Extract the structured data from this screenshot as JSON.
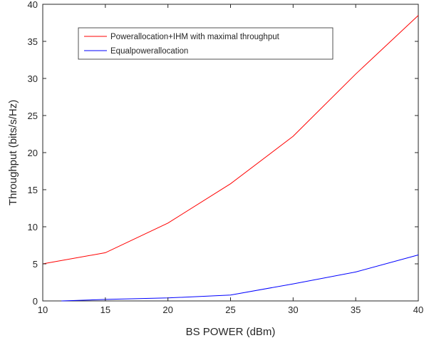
{
  "chart_data": {
    "type": "line",
    "title": "",
    "xlabel": "BS POWER (dBm)",
    "ylabel": "Throughput (bits/s/Hz)",
    "xlim": [
      10,
      40
    ],
    "ylim": [
      0,
      40
    ],
    "xticks": [
      "10",
      "15",
      "20",
      "25",
      "30",
      "35",
      "40"
    ],
    "yticks": [
      "0",
      "5",
      "10",
      "15",
      "20",
      "25",
      "30",
      "35",
      "40"
    ],
    "grid": false,
    "legend_position": "top-left",
    "series": [
      {
        "name": "Powerallocation+IHM with maximal throughput",
        "color": "#ff0000",
        "x": [
          10,
          15,
          20,
          25,
          30,
          35,
          40
        ],
        "y": [
          5.0,
          6.5,
          10.5,
          15.8,
          22.2,
          30.6,
          38.5
        ]
      },
      {
        "name": "Equalpoweral­location",
        "color": "#0000ff",
        "x": [
          11.5,
          15,
          20,
          25,
          30,
          35,
          40
        ],
        "y": [
          0.0,
          0.2,
          0.4,
          0.8,
          2.3,
          3.9,
          6.2
        ]
      }
    ]
  }
}
